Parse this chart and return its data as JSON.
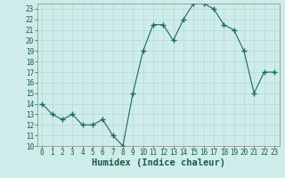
{
  "x": [
    0,
    1,
    2,
    3,
    4,
    5,
    6,
    7,
    8,
    9,
    10,
    11,
    12,
    13,
    14,
    15,
    16,
    17,
    18,
    19,
    20,
    21,
    22,
    23
  ],
  "y": [
    14,
    13,
    12.5,
    13,
    12,
    12,
    12.5,
    11,
    10,
    15,
    19,
    21.5,
    21.5,
    20,
    22,
    23.5,
    23.5,
    23,
    21.5,
    21,
    19,
    15,
    17,
    17
  ],
  "line_color": "#1a6b5a",
  "marker": "+",
  "marker_size": 4,
  "marker_lw": 1.0,
  "bg_color": "#ceecea",
  "grid_major_color": "#b8d8d4",
  "grid_minor_color": "#d4ecea",
  "xlabel": "Humidex (Indice chaleur)",
  "xlim": [
    -0.5,
    23.5
  ],
  "ylim": [
    10,
    23.5
  ],
  "yticks": [
    10,
    11,
    12,
    13,
    14,
    15,
    16,
    17,
    18,
    19,
    20,
    21,
    22,
    23
  ],
  "xticks": [
    0,
    1,
    2,
    3,
    4,
    5,
    6,
    7,
    8,
    9,
    10,
    11,
    12,
    13,
    14,
    15,
    16,
    17,
    18,
    19,
    20,
    21,
    22,
    23
  ],
  "tick_label_fontsize": 5.5,
  "xlabel_fontsize": 7.5,
  "text_color": "#1a5a4a"
}
